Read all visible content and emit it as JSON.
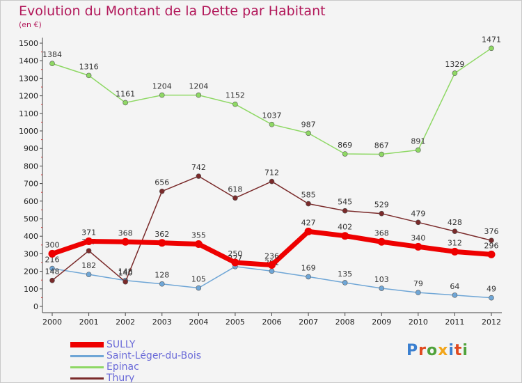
{
  "title": "Evolution du Montant de la Dette par Habitant",
  "subtitle": "(en €)",
  "logo": "Proxiti",
  "chart_data": {
    "type": "line",
    "title": "Evolution du Montant de la Dette par Habitant",
    "ylabel": "(en €)",
    "x": [
      "2000",
      "2001",
      "2002",
      "2003",
      "2004",
      "2005",
      "2006",
      "2007",
      "2008",
      "2009",
      "2010",
      "2011",
      "2012"
    ],
    "ylim": [
      0,
      1500
    ],
    "yticks": [
      0,
      100,
      200,
      300,
      400,
      500,
      600,
      700,
      800,
      900,
      1000,
      1100,
      1200,
      1300,
      1400,
      1500
    ],
    "grid": false,
    "legend": "bottom-left",
    "series": [
      {
        "name": "SULLY",
        "color": "#ee0000",
        "values": [
          300,
          371,
          368,
          362,
          355,
          250,
          236,
          427,
          402,
          368,
          340,
          312,
          296
        ]
      },
      {
        "name": "Saint-Léger-du-Bois",
        "color": "#6fa6d6",
        "values": [
          216,
          182,
          148,
          128,
          105,
          227,
          201,
          169,
          135,
          103,
          79,
          64,
          49
        ]
      },
      {
        "name": "Epinac",
        "color": "#8ed864",
        "values": [
          1384,
          1316,
          1161,
          1204,
          1204,
          1152,
          1037,
          987,
          869,
          867,
          891,
          1329,
          1471
        ]
      },
      {
        "name": "Thury",
        "color": "#7a2a2a",
        "values": [
          148,
          317,
          140,
          656,
          742,
          618,
          712,
          585,
          545,
          529,
          479,
          428,
          376
        ]
      }
    ]
  }
}
